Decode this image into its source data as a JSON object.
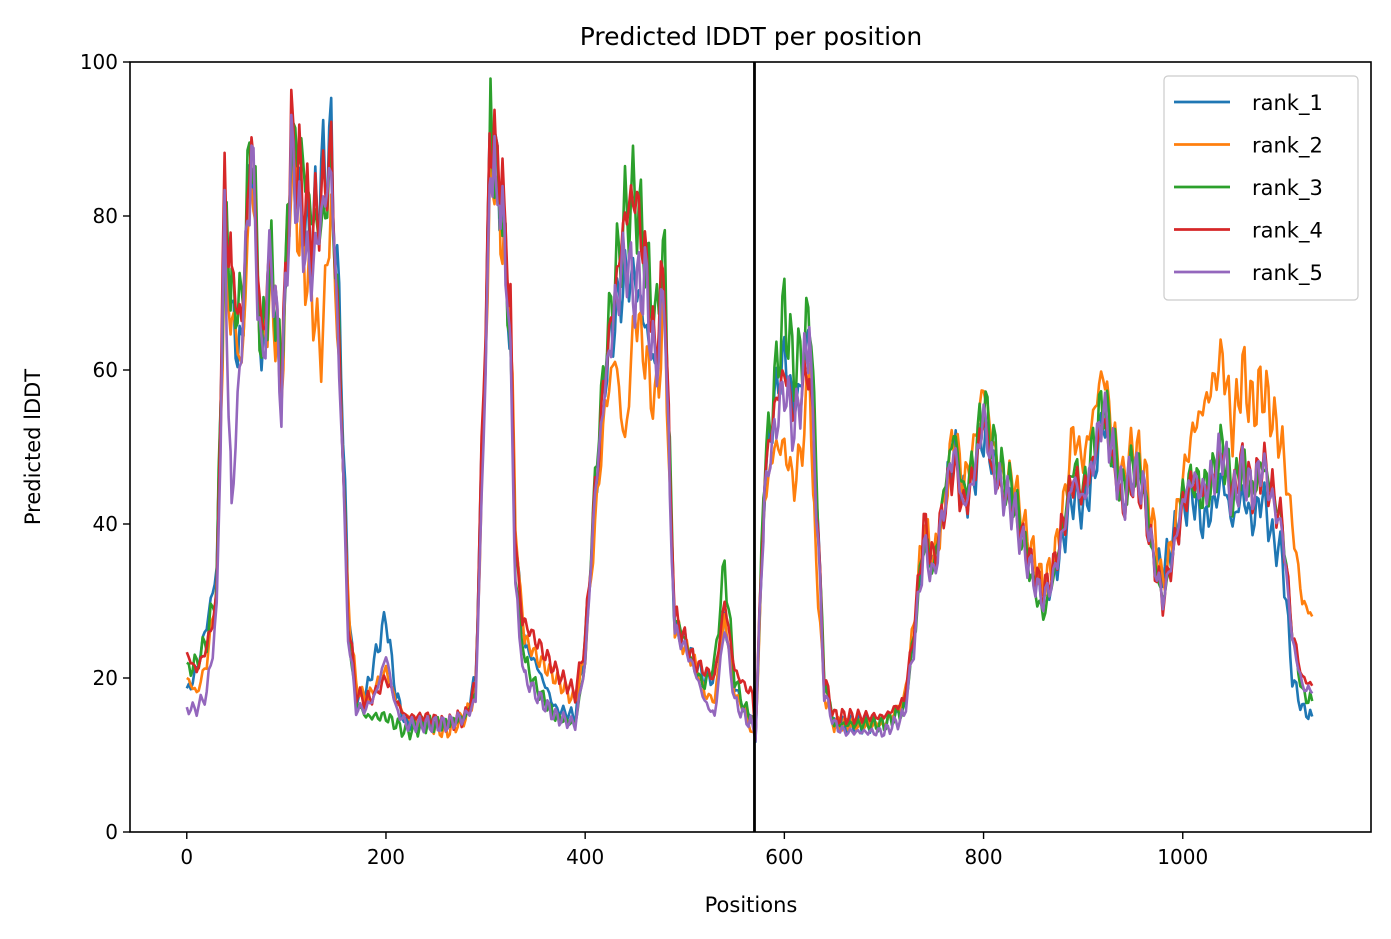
{
  "chart_data": {
    "type": "line",
    "title": "Predicted lDDT per position",
    "xlabel": "Positions",
    "ylabel": "Predicted lDDT",
    "xlim": [
      -57,
      1189
    ],
    "ylim": [
      0,
      100
    ],
    "xticks": [
      0,
      200,
      400,
      600,
      800,
      1000
    ],
    "yticks": [
      0,
      20,
      40,
      60,
      80,
      100
    ],
    "grid": false,
    "legend_position": "top-right",
    "vline_x": 570,
    "series": [
      {
        "name": "rank_1",
        "color": "#1f77b4",
        "offset": 0.6,
        "x": [
          0,
          10,
          20,
          30,
          38,
          45,
          55,
          65,
          75,
          85,
          95,
          105,
          115,
          125,
          135,
          145,
          155,
          162,
          170,
          180,
          190,
          200,
          210,
          220,
          240,
          260,
          280,
          290,
          300,
          305,
          310,
          315,
          320,
          325,
          330,
          335,
          340,
          350,
          370,
          390,
          400,
          410,
          420,
          430,
          440,
          450,
          460,
          470,
          480,
          485,
          490,
          500,
          510,
          520,
          530,
          540,
          550,
          560,
          568
        ],
        "y": [
          18,
          21,
          27,
          34,
          78,
          66,
          62,
          90,
          60,
          73,
          57,
          87,
          80,
          77,
          85,
          89,
          62,
          30,
          17,
          18,
          23,
          28,
          18,
          14,
          14,
          14,
          15,
          20,
          65,
          90,
          86,
          82,
          76,
          62,
          40,
          30,
          24,
          22,
          16,
          15,
          25,
          43,
          60,
          67,
          72,
          72,
          66,
          60,
          70,
          44,
          26,
          25,
          22,
          20,
          20,
          28,
          19,
          16,
          15
        ]
      },
      {
        "name": "rank_2",
        "color": "#ff7f0e",
        "offset": 0.0,
        "x": [
          0,
          10,
          20,
          30,
          38,
          45,
          55,
          65,
          75,
          85,
          95,
          105,
          115,
          125,
          135,
          145,
          155,
          162,
          170,
          180,
          190,
          200,
          210,
          220,
          240,
          260,
          280,
          290,
          300,
          305,
          310,
          315,
          320,
          325,
          330,
          335,
          340,
          350,
          370,
          390,
          400,
          410,
          420,
          430,
          440,
          450,
          460,
          470,
          480,
          485,
          490,
          500,
          510,
          520,
          530,
          540,
          550,
          560,
          568
        ],
        "y": [
          20,
          18,
          22,
          32,
          75,
          68,
          60,
          86,
          62,
          70,
          58,
          88,
          76,
          70,
          62,
          82,
          55,
          30,
          19,
          17,
          19,
          21,
          17,
          15,
          14,
          13,
          15,
          18,
          62,
          88,
          86,
          80,
          74,
          66,
          40,
          30,
          25,
          23,
          20,
          17,
          23,
          40,
          55,
          62,
          50,
          68,
          62,
          55,
          68,
          45,
          27,
          24,
          22,
          18,
          17,
          28,
          18,
          16,
          13
        ]
      },
      {
        "name": "rank_3",
        "color": "#2ca02c",
        "offset": 0.3,
        "x": [
          0,
          10,
          20,
          30,
          38,
          45,
          55,
          65,
          75,
          85,
          95,
          105,
          115,
          125,
          135,
          145,
          155,
          162,
          170,
          180,
          190,
          200,
          210,
          220,
          240,
          260,
          280,
          290,
          300,
          305,
          310,
          315,
          320,
          325,
          330,
          335,
          340,
          350,
          370,
          390,
          400,
          410,
          420,
          430,
          440,
          450,
          460,
          470,
          480,
          485,
          490,
          500,
          510,
          520,
          530,
          540,
          550,
          560,
          568
        ],
        "y": [
          21,
          22,
          25,
          32,
          80,
          70,
          68,
          92,
          62,
          74,
          60,
          90,
          88,
          80,
          78,
          86,
          58,
          26,
          17,
          15,
          15,
          15,
          14,
          13,
          14,
          14,
          15,
          18,
          65,
          92,
          86,
          84,
          75,
          64,
          35,
          26,
          22,
          19,
          15,
          14,
          22,
          46,
          62,
          72,
          80,
          83,
          76,
          66,
          76,
          48,
          28,
          25,
          21,
          19,
          22,
          35,
          20,
          16,
          15
        ]
      },
      {
        "name": "rank_4",
        "color": "#d62728",
        "offset": 0.8,
        "x": [
          0,
          10,
          20,
          30,
          38,
          45,
          55,
          65,
          75,
          85,
          95,
          105,
          115,
          125,
          135,
          145,
          155,
          162,
          170,
          180,
          190,
          200,
          210,
          220,
          240,
          260,
          280,
          290,
          300,
          305,
          310,
          315,
          320,
          325,
          330,
          335,
          340,
          350,
          370,
          390,
          400,
          410,
          420,
          430,
          440,
          450,
          460,
          470,
          480,
          485,
          490,
          500,
          510,
          520,
          530,
          540,
          550,
          560,
          568
        ],
        "y": [
          23,
          21,
          24,
          30,
          84,
          72,
          66,
          91,
          64,
          75,
          58,
          90,
          84,
          78,
          82,
          88,
          56,
          28,
          18,
          17,
          18,
          20,
          17,
          15,
          15,
          14,
          15,
          19,
          68,
          91,
          88,
          84,
          78,
          66,
          38,
          30,
          27,
          25,
          21,
          18,
          25,
          44,
          60,
          70,
          80,
          83,
          75,
          62,
          74,
          46,
          28,
          25,
          22,
          21,
          20,
          30,
          21,
          19,
          18
        ]
      },
      {
        "name": "rank_5",
        "color": "#9467bd",
        "offset": 1.0,
        "x": [
          0,
          10,
          20,
          30,
          38,
          45,
          55,
          65,
          75,
          85,
          95,
          105,
          115,
          125,
          135,
          145,
          155,
          162,
          170,
          180,
          190,
          200,
          210,
          220,
          240,
          260,
          280,
          290,
          300,
          305,
          310,
          315,
          320,
          325,
          330,
          335,
          340,
          350,
          370,
          390,
          400,
          410,
          420,
          430,
          440,
          450,
          460,
          470,
          480,
          485,
          490,
          500,
          510,
          520,
          530,
          540,
          550,
          560,
          568
        ],
        "y": [
          16,
          16,
          18,
          28,
          78,
          42,
          64,
          89,
          60,
          76,
          56,
          88,
          78,
          72,
          80,
          86,
          54,
          26,
          16,
          16,
          18,
          23,
          16,
          14,
          14,
          14,
          15,
          17,
          60,
          90,
          84,
          82,
          74,
          60,
          32,
          24,
          20,
          18,
          15,
          14,
          22,
          44,
          58,
          68,
          75,
          70,
          72,
          60,
          70,
          44,
          26,
          24,
          21,
          17,
          15,
          27,
          17,
          15,
          14
        ]
      }
    ],
    "series_b": [
      {
        "name": "rank_1",
        "x": [
          571,
          580,
          590,
          600,
          610,
          620,
          625,
          630,
          640,
          650,
          660,
          680,
          700,
          720,
          730,
          740,
          750,
          760,
          770,
          780,
          790,
          800,
          810,
          820,
          830,
          840,
          850,
          860,
          870,
          880,
          890,
          900,
          910,
          920,
          930,
          940,
          950,
          960,
          970,
          980,
          990,
          1000,
          1010,
          1020,
          1030,
          1040,
          1050,
          1060,
          1070,
          1080,
          1090,
          1100,
          1110,
          1120,
          1130
        ],
        "y": [
          12,
          45,
          56,
          62,
          55,
          60,
          68,
          52,
          20,
          14,
          14,
          14,
          14,
          16,
          25,
          38,
          34,
          42,
          50,
          43,
          46,
          52,
          48,
          46,
          42,
          38,
          34,
          30,
          33,
          38,
          44,
          42,
          46,
          54,
          48,
          42,
          46,
          44,
          36,
          34,
          38,
          42,
          44,
          40,
          42,
          46,
          40,
          44,
          40,
          44,
          38,
          36,
          20,
          16,
          15
        ]
      },
      {
        "name": "rank_2",
        "x": [
          571,
          580,
          590,
          600,
          610,
          620,
          625,
          630,
          640,
          650,
          660,
          680,
          700,
          720,
          730,
          740,
          750,
          760,
          770,
          780,
          790,
          800,
          810,
          820,
          830,
          840,
          850,
          860,
          870,
          880,
          890,
          900,
          910,
          920,
          930,
          940,
          950,
          960,
          970,
          980,
          990,
          1000,
          1010,
          1020,
          1030,
          1040,
          1050,
          1060,
          1070,
          1080,
          1090,
          1100,
          1110,
          1120,
          1130
        ],
        "y": [
          13,
          43,
          50,
          50,
          45,
          52,
          60,
          40,
          18,
          14,
          14,
          14,
          14,
          17,
          27,
          40,
          35,
          42,
          52,
          45,
          50,
          58,
          50,
          46,
          46,
          40,
          36,
          32,
          35,
          42,
          52,
          48,
          54,
          60,
          52,
          46,
          50,
          48,
          40,
          32,
          38,
          46,
          52,
          55,
          58,
          62,
          52,
          60,
          55,
          58,
          54,
          50,
          40,
          30,
          28
        ]
      },
      {
        "name": "rank_3",
        "x": [
          571,
          580,
          590,
          600,
          610,
          620,
          625,
          630,
          640,
          650,
          660,
          680,
          700,
          720,
          730,
          740,
          750,
          760,
          770,
          780,
          790,
          800,
          810,
          820,
          830,
          840,
          850,
          860,
          870,
          880,
          890,
          900,
          910,
          920,
          930,
          940,
          950,
          960,
          970,
          980,
          990,
          1000,
          1010,
          1020,
          1030,
          1040,
          1050,
          1060,
          1070,
          1080,
          1090,
          1100,
          1110,
          1120,
          1130
        ],
        "y": [
          13,
          47,
          58,
          68,
          60,
          63,
          68,
          54,
          20,
          14,
          14,
          14,
          14,
          16,
          25,
          38,
          34,
          44,
          52,
          44,
          48,
          56,
          50,
          46,
          44,
          38,
          32,
          28,
          33,
          40,
          48,
          44,
          50,
          56,
          50,
          44,
          48,
          46,
          36,
          30,
          36,
          44,
          46,
          44,
          46,
          50,
          44,
          48,
          44,
          48,
          44,
          40,
          26,
          18,
          17
        ]
      },
      {
        "name": "rank_4",
        "x": [
          571,
          580,
          590,
          600,
          610,
          620,
          625,
          630,
          640,
          650,
          660,
          680,
          700,
          720,
          730,
          740,
          750,
          760,
          770,
          780,
          790,
          800,
          810,
          820,
          830,
          840,
          850,
          860,
          870,
          880,
          890,
          900,
          910,
          920,
          930,
          940,
          950,
          960,
          970,
          980,
          990,
          1000,
          1010,
          1020,
          1030,
          1040,
          1050,
          1060,
          1070,
          1080,
          1090,
          1100,
          1110,
          1120,
          1130
        ],
        "y": [
          13,
          46,
          55,
          60,
          54,
          58,
          62,
          50,
          20,
          15,
          15,
          15,
          15,
          17,
          26,
          40,
          35,
          42,
          48,
          42,
          46,
          54,
          46,
          44,
          42,
          38,
          34,
          31,
          34,
          40,
          46,
          44,
          48,
          54,
          48,
          42,
          46,
          44,
          36,
          30,
          36,
          42,
          46,
          44,
          46,
          50,
          44,
          48,
          44,
          48,
          44,
          40,
          26,
          20,
          19
        ]
      },
      {
        "name": "rank_5",
        "x": [
          571,
          580,
          590,
          600,
          610,
          620,
          625,
          630,
          640,
          650,
          660,
          680,
          700,
          720,
          730,
          740,
          750,
          760,
          770,
          780,
          790,
          800,
          810,
          820,
          830,
          840,
          850,
          860,
          870,
          880,
          890,
          900,
          910,
          920,
          930,
          940,
          950,
          960,
          970,
          980,
          990,
          1000,
          1010,
          1020,
          1030,
          1040,
          1050,
          1060,
          1070,
          1080,
          1090,
          1100,
          1110,
          1120,
          1130
        ],
        "y": [
          13,
          44,
          52,
          58,
          52,
          60,
          66,
          50,
          18,
          14,
          13,
          13,
          13,
          15,
          24,
          37,
          33,
          42,
          50,
          42,
          46,
          54,
          47,
          44,
          42,
          37,
          33,
          30,
          33,
          39,
          46,
          43,
          48,
          55,
          49,
          43,
          47,
          45,
          36,
          30,
          36,
          43,
          46,
          44,
          46,
          50,
          43,
          47,
          44,
          48,
          43,
          39,
          25,
          19,
          18
        ]
      }
    ]
  }
}
